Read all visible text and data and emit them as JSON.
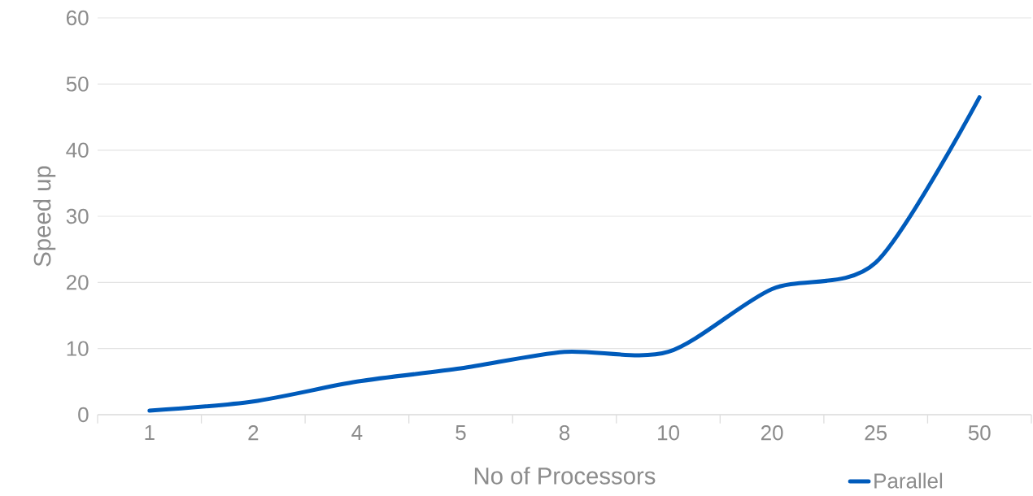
{
  "chart_data": {
    "type": "line",
    "xlabel": "No of Processors",
    "ylabel": "Speed up",
    "categories": [
      "1",
      "2",
      "4",
      "5",
      "8",
      "10",
      "20",
      "25",
      "50"
    ],
    "series": [
      {
        "name": "Parallel",
        "color": "#005bbb",
        "values": [
          0.6,
          2,
          5,
          7,
          9.5,
          9.5,
          19,
          23,
          48
        ]
      }
    ],
    "ylim": [
      0,
      60
    ],
    "yticks": [
      0,
      10,
      20,
      30,
      40,
      50,
      60
    ],
    "grid": "y",
    "legend": "bottom right",
    "line_style": "solid"
  }
}
